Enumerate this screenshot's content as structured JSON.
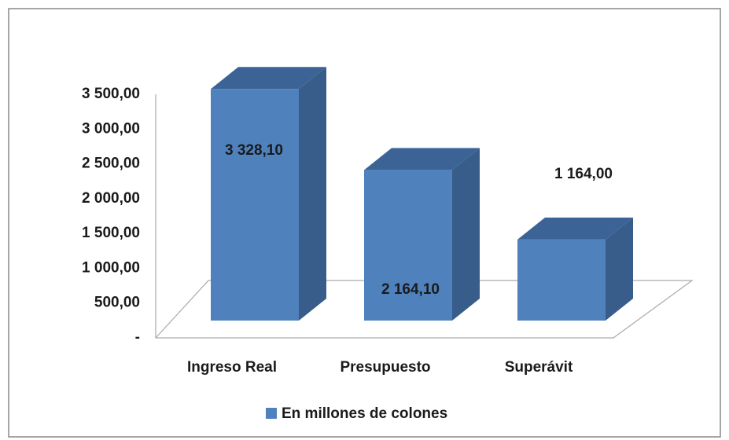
{
  "chart_data": {
    "type": "bar3d",
    "categories": [
      "Ingreso Real",
      "Presupuesto",
      "Superávit"
    ],
    "series": [
      {
        "name": "En millones de colones",
        "color": "#4f81bd",
        "values": [
          3328.1,
          2164.1,
          1164.0
        ],
        "value_labels": [
          "3 328,10",
          "2 164,10",
          "1 164,00"
        ]
      }
    ],
    "ylim": [
      0,
      3500
    ],
    "yticks": [
      {
        "value": 0,
        "label": "-"
      },
      {
        "value": 500,
        "label": "500,00"
      },
      {
        "value": 1000,
        "label": "1 000,00"
      },
      {
        "value": 1500,
        "label": "1 500,00"
      },
      {
        "value": 2000,
        "label": "2 000,00"
      },
      {
        "value": 2500,
        "label": "2 500,00"
      },
      {
        "value": 3000,
        "label": "3 000,00"
      },
      {
        "value": 3500,
        "label": "3 500,00"
      }
    ],
    "legend": "bottom"
  }
}
